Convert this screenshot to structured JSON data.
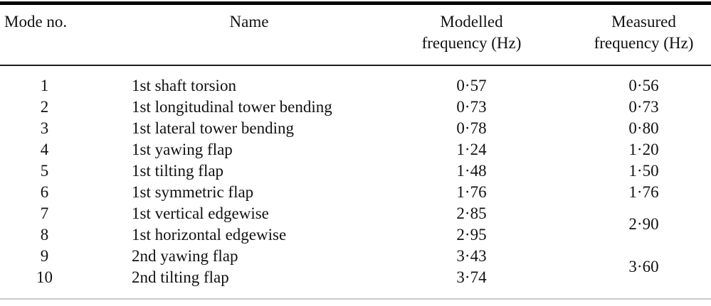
{
  "table": {
    "title_semantic": "Modelled and measured natural frequencies by mode",
    "header": {
      "mode": "Mode no.",
      "name": "Name",
      "modelled": {
        "line1": "Modelled",
        "line2": "frequency (Hz)"
      },
      "measured": {
        "line1": "Measured",
        "line2": "frequency (Hz)"
      }
    },
    "rows": [
      {
        "mode": "1",
        "name": "1st shaft torsion",
        "modelled": "0·57",
        "measured": "0·56"
      },
      {
        "mode": "2",
        "name": "1st longitudinal tower bending",
        "modelled": "0·73",
        "measured": "0·73"
      },
      {
        "mode": "3",
        "name": "1st lateral tower bending",
        "modelled": "0·78",
        "measured": "0·80"
      },
      {
        "mode": "4",
        "name": "1st yawing flap",
        "modelled": "1·24",
        "measured": "1·20"
      },
      {
        "mode": "5",
        "name": "1st tilting flap",
        "modelled": "1·48",
        "measured": "1·50"
      },
      {
        "mode": "6",
        "name": "1st symmetric flap",
        "modelled": "1·76",
        "measured": "1·76"
      },
      {
        "mode": "7",
        "name": "1st vertical edgewise",
        "modelled": "2·85",
        "measured": "2·90"
      },
      {
        "mode": "8",
        "name": "1st horizontal edgewise",
        "modelled": "2·95"
      },
      {
        "mode": "9",
        "name": "2nd yawing flap",
        "modelled": "3·43",
        "measured": "3·60"
      },
      {
        "mode": "10",
        "name": "2nd tilting flap",
        "modelled": "3·74"
      }
    ]
  },
  "colors": {
    "text": "#111111",
    "rule_heavy": "#050505",
    "rule_header": "#1c1c1c",
    "rule_bottom": "#c9c9c9",
    "background": "#ffffff"
  }
}
